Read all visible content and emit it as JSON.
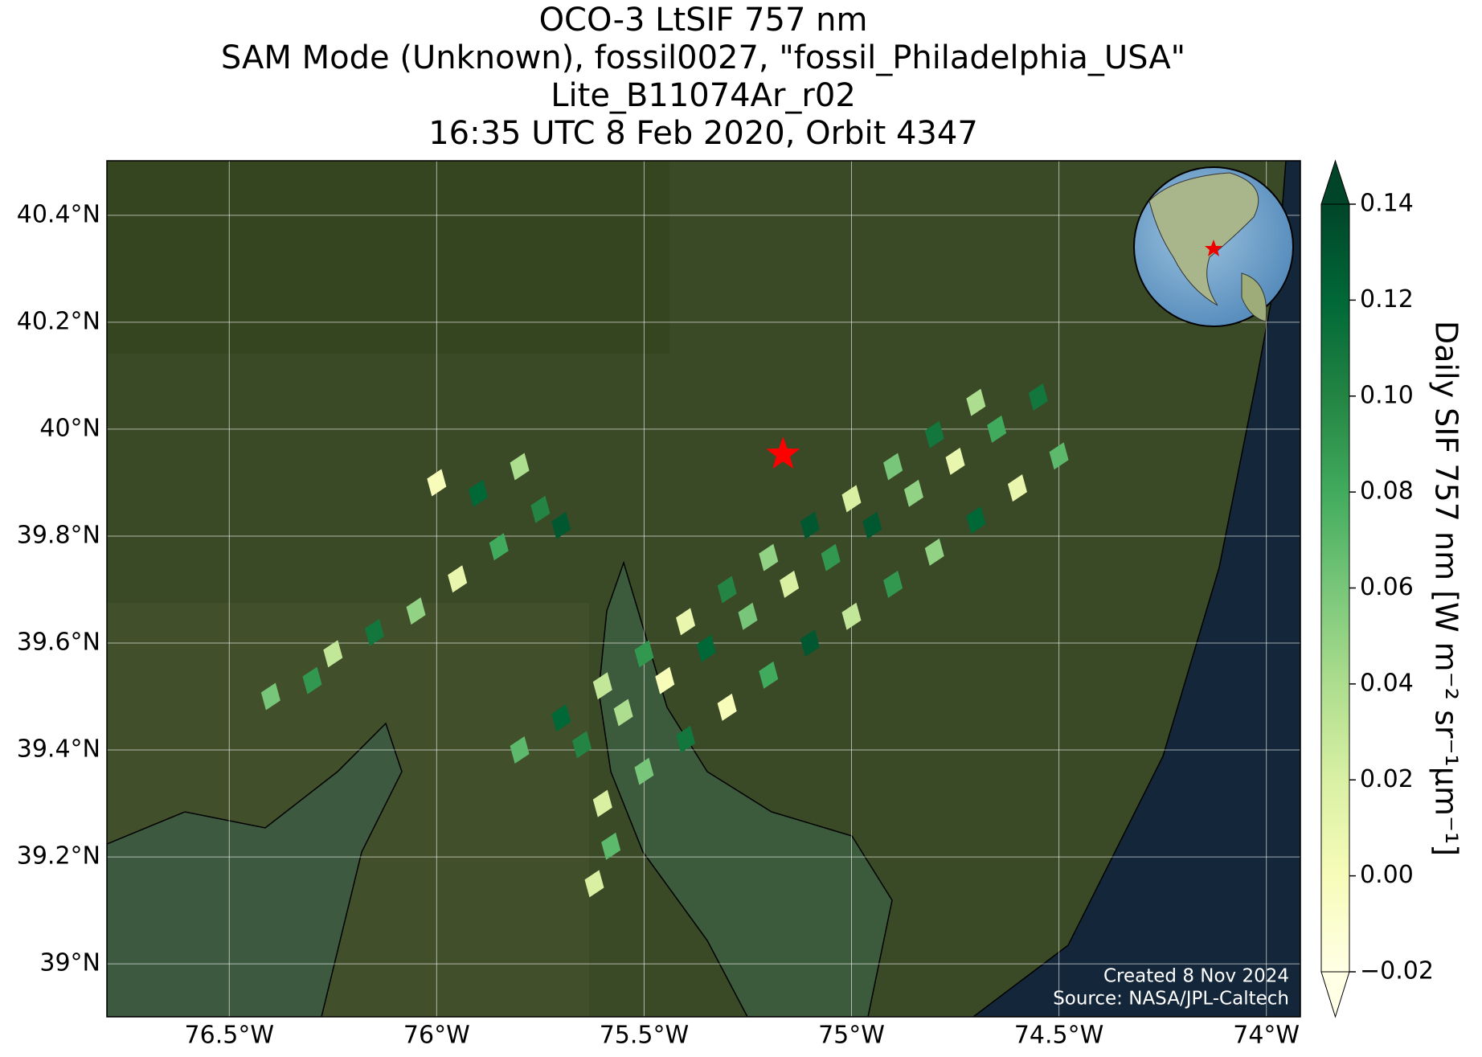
{
  "chart_data": {
    "type": "map",
    "title": [
      "OCO-3 LtSIF 757 nm",
      "SAM Mode (Unknown), fossil0027, \"fossil_Philadelphia_USA\"",
      "Lite_B11074Ar_r02",
      "16:35 UTC 8 Feb 2020, Orbit 4347"
    ],
    "xlim": [
      -76.795,
      -73.918
    ],
    "ylim": [
      38.901,
      40.502
    ],
    "xticks": [
      {
        "value": -76.5,
        "label": "76.5°W"
      },
      {
        "value": -76,
        "label": "76°W"
      },
      {
        "value": -75.5,
        "label": "75.5°W"
      },
      {
        "value": -75,
        "label": "75°W"
      },
      {
        "value": -74.5,
        "label": "74.5°W"
      },
      {
        "value": -74,
        "label": "74°W"
      }
    ],
    "yticks": [
      {
        "value": 39,
        "label": "39°N"
      },
      {
        "value": 39.2,
        "label": "39.2°N"
      },
      {
        "value": 39.4,
        "label": "39.4°N"
      },
      {
        "value": 39.6,
        "label": "39.6°N"
      },
      {
        "value": 39.8,
        "label": "39.8°N"
      },
      {
        "value": 40,
        "label": "40°N"
      },
      {
        "value": 40.2,
        "label": "40.2°N"
      },
      {
        "value": 40.4,
        "label": "40.4°N"
      }
    ],
    "grid": true,
    "colormap": "YlGn",
    "clim": [
      -0.02,
      0.14
    ],
    "cticks": [
      {
        "value": -0.02,
        "label": "−0.02"
      },
      {
        "value": 0,
        "label": "0.00"
      },
      0.02,
      0.04,
      0.06,
      0.08,
      {
        "value": 0.1,
        "label": "0.10"
      },
      0.12,
      0.14
    ],
    "colorbar_label": "Daily SIF 757 nm [W m⁻² sr⁻¹μm⁻¹]",
    "footprints": {
      "lon": [
        -75.6,
        -75.5,
        -75.4,
        -75.3,
        -75.2,
        -75.1,
        -75.0,
        -74.9,
        -74.8,
        -74.7,
        -74.6,
        -74.5,
        -75.65,
        -75.55,
        -75.45,
        -75.35,
        -75.25,
        -75.15,
        -75.05,
        -74.95,
        -74.85,
        -74.75,
        -74.65,
        -74.55,
        -75.8,
        -75.7,
        -75.6,
        -75.5,
        -75.4,
        -75.3,
        -75.2,
        -75.1,
        -75.0,
        -74.9,
        -74.8,
        -74.7,
        -76.4,
        -76.3,
        -76.25,
        -76.15,
        -76.05,
        -75.95,
        -75.85,
        -75.9,
        -75.8,
        -76.0,
        -75.75,
        -75.7,
        -75.62,
        -75.58
      ],
      "lat": [
        39.3,
        39.36,
        39.42,
        39.48,
        39.54,
        39.6,
        39.65,
        39.71,
        39.77,
        39.83,
        39.89,
        39.95,
        39.41,
        39.47,
        39.53,
        39.59,
        39.65,
        39.71,
        39.76,
        39.82,
        39.88,
        39.94,
        40.0,
        40.06,
        39.4,
        39.46,
        39.52,
        39.58,
        39.64,
        39.7,
        39.76,
        39.82,
        39.87,
        39.93,
        39.99,
        40.05,
        39.5,
        39.53,
        39.58,
        39.62,
        39.66,
        39.72,
        39.78,
        39.88,
        39.93,
        39.9,
        39.85,
        39.82,
        39.15,
        39.22
      ],
      "values": [
        0.02,
        0.06,
        0.11,
        0.0,
        0.08,
        0.13,
        0.03,
        0.09,
        0.05,
        0.12,
        0.01,
        0.07,
        0.1,
        0.04,
        0.0,
        0.12,
        0.06,
        0.02,
        0.09,
        0.13,
        0.05,
        0.01,
        0.08,
        0.11,
        0.07,
        0.12,
        0.03,
        0.09,
        0.01,
        0.1,
        0.05,
        0.13,
        0.02,
        0.06,
        0.11,
        0.04,
        0.06,
        0.09,
        0.03,
        0.11,
        0.05,
        0.01,
        0.08,
        0.12,
        0.04,
        0.0,
        0.1,
        0.13,
        0.02,
        0.07
      ]
    },
    "target": {
      "lon": -75.165,
      "lat": 39.953
    },
    "annotations": [
      "Created 8 Nov 2024",
      "Source: NASA/JPL-Caltech"
    ]
  }
}
